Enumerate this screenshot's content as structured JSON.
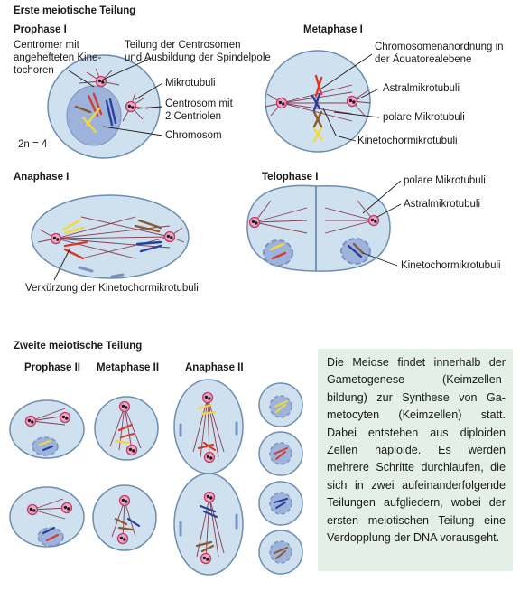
{
  "headings": {
    "first_division": "Erste meiotische Teilung",
    "second_division": "Zweite meiotische Teilung"
  },
  "stages": {
    "prophase1": "Prophase I",
    "metaphase1": "Metaphase I",
    "anaphase1": "Anaphase I",
    "telophase1": "Telophase I",
    "prophase2": "Prophase II",
    "metaphase2": "Metaphase II",
    "anaphase2": "Anaphase II"
  },
  "labels": {
    "centromere": "Centromer mit\nangehefteten Kine-\ntochoren",
    "centrosome_division": "Teilung der Centrosomen\nund Ausbildung der Spindelpole",
    "microtubules": "Mikrotubuli",
    "centrosome": "Centrosom mit\n2 Centriolen",
    "chromosome": "Chromosom",
    "ploidy": "2n = 4",
    "chromosome_arrangement": "Chromosomenanordnung in\nder Äquatorealebene",
    "astral_mt_meta": "Astralmikrotubuli",
    "polar_mt_meta": "polare Mikrotubuli",
    "kinetochore_mt_meta": "Kinetochormikrotubuli",
    "shortening": "Verkürzung der Kinetochormikrotubuli",
    "polar_mt_telo": "polare Mikrotubuli",
    "astral_mt_telo": "Astralmikrotubuli",
    "kinetochore_mt_telo": "Kinetochormikrotubuli"
  },
  "info_text": "Die Meiose findet innerhalb der Gametogenese (Keimzellen­bildung) zur Synthese von Ga­metocyten (Keimzellen) statt. Dabei entstehen aus diploiden Zellen haploide. Es werden mehrere Schritte durchlaufen, die sich in zwei aufeinanderfol­gende Teilungen aufgliedern, wobei der ersten meiotischen Teilung eine Verdopplung der DNA vorausgeht.",
  "colors": {
    "cell_fill": "#cfe0ee",
    "cell_stroke": "#6d8db0",
    "nucleus_fill": "#9db3dc",
    "microtubule": "#8b3a50",
    "centrosome": "#c0396b",
    "chromosome_red": "#d63a2c",
    "chromosome_yellow": "#f2d83a",
    "chromosome_blue": "#2a3f9a",
    "chromosome_brown": "#8a5a2c",
    "info_box": "#e3efe7"
  }
}
